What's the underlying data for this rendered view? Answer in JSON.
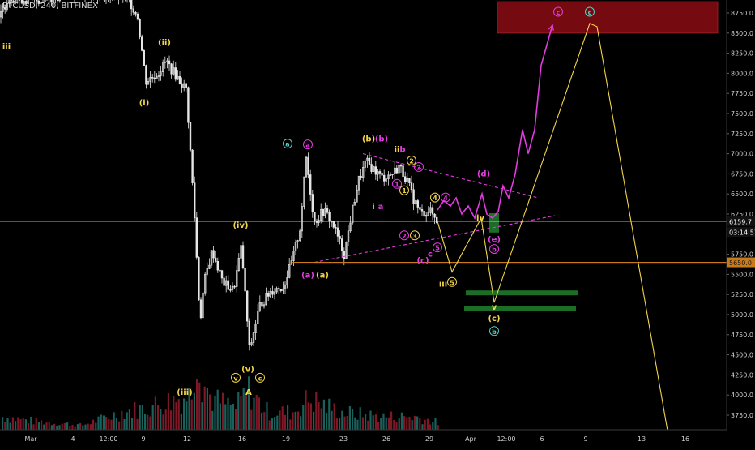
{
  "symbol": "BTCUSD, 240, BITFINEX",
  "colors": {
    "background": "#000000",
    "candle": "#e6e6e6",
    "axis_text": "#cfcfcf",
    "yellow": "#f2d54a",
    "magenta": "#e23ce0",
    "teal": "#4fd1c5",
    "green_zone": "#1f7a2a",
    "red_zone": "#8a0d14",
    "support_line": "#c77a1a",
    "vol_up": "#1d6b66",
    "vol_down": "#8c1a2a"
  },
  "chart_data": {
    "type": "candlestick",
    "ylim": [
      3500,
      9000
    ],
    "y_ticks": [
      "8750.0",
      "8500.0",
      "8250.0",
      "8000.0",
      "7750.0",
      "7500.0",
      "7250.0",
      "7000.0",
      "6750.0",
      "6500.0",
      "6250.0",
      "5750.0",
      "5500.0",
      "5250.0",
      "5000.0",
      "4750.0",
      "4500.0",
      "4250.0",
      "4000.0",
      "3750.0"
    ],
    "y_tick_values": [
      8750,
      8500,
      8250,
      8000,
      7750,
      7500,
      7250,
      7000,
      6750,
      6500,
      6250,
      5750,
      5500,
      5250,
      5000,
      4750,
      4500,
      4250,
      4000,
      3750
    ],
    "x_ticks": [
      "Mar",
      "4",
      "12:00",
      "9",
      "12",
      "16",
      "19",
      "23",
      "26",
      "29",
      "Apr",
      "12:00",
      "6",
      "9",
      "13",
      "16"
    ],
    "price_labels": {
      "current": "6159.7",
      "countdown": "03:14:57",
      "support": "5650.0"
    },
    "price_path": [
      [
        0,
        8700
      ],
      [
        10,
        8950
      ],
      [
        40,
        8900
      ],
      [
        70,
        8950
      ],
      [
        100,
        9000
      ],
      [
        150,
        8950
      ],
      [
        160,
        8900
      ],
      [
        170,
        8700
      ],
      [
        180,
        7900
      ],
      [
        195,
        8000
      ],
      [
        205,
        8150
      ],
      [
        215,
        8000
      ],
      [
        230,
        7800
      ],
      [
        240,
        6250
      ],
      [
        247,
        4900
      ],
      [
        252,
        5400
      ],
      [
        262,
        5800
      ],
      [
        275,
        5400
      ],
      [
        288,
        5300
      ],
      [
        298,
        5850
      ],
      [
        308,
        4550
      ],
      [
        320,
        5100
      ],
      [
        335,
        5300
      ],
      [
        350,
        5350
      ],
      [
        360,
        5650
      ],
      [
        370,
        6050
      ],
      [
        378,
        6950
      ],
      [
        388,
        6150
      ],
      [
        400,
        6300
      ],
      [
        412,
        6100
      ],
      [
        425,
        5750
      ],
      [
        433,
        6200
      ],
      [
        442,
        6650
      ],
      [
        452,
        6900
      ],
      [
        462,
        6800
      ],
      [
        472,
        6700
      ],
      [
        484,
        6750
      ],
      [
        493,
        6850
      ],
      [
        503,
        6650
      ],
      [
        510,
        6450
      ],
      [
        520,
        6250
      ],
      [
        530,
        6300
      ],
      [
        540,
        6160
      ]
    ],
    "volume_path": [
      [
        0,
        0.15
      ],
      [
        40,
        0.1
      ],
      [
        100,
        0.05
      ],
      [
        150,
        0.2
      ],
      [
        180,
        0.25
      ],
      [
        235,
        0.4
      ],
      [
        242,
        1.0
      ],
      [
        248,
        0.6
      ],
      [
        260,
        0.35
      ],
      [
        290,
        0.25
      ],
      [
        305,
        0.45
      ],
      [
        330,
        0.2
      ],
      [
        360,
        0.2
      ],
      [
        380,
        0.35
      ],
      [
        420,
        0.2
      ],
      [
        470,
        0.15
      ],
      [
        510,
        0.15
      ],
      [
        540,
        0.08
      ]
    ],
    "wave_labels": [
      {
        "text": "iii",
        "price": 8300,
        "x": 8,
        "color": "yellow",
        "style": "plain"
      },
      {
        "text": "(ii)",
        "price": 8350,
        "x": 203,
        "color": "yellow",
        "style": "plain"
      },
      {
        "text": "(i)",
        "price": 7600,
        "x": 178,
        "color": "yellow",
        "style": "plain"
      },
      {
        "text": "(iv)",
        "price": 6080,
        "x": 297,
        "color": "yellow",
        "style": "plain"
      },
      {
        "text": "(v)",
        "price": 4290,
        "x": 306,
        "color": "yellow",
        "style": "plain"
      },
      {
        "text": "v",
        "price": 4180,
        "x": 291,
        "color": "yellow",
        "style": "circle"
      },
      {
        "text": "c",
        "price": 4180,
        "x": 321,
        "color": "yellow",
        "style": "circle"
      },
      {
        "text": "A",
        "price": 4000,
        "x": 307,
        "color": "yellow",
        "style": "plain"
      },
      {
        "text": "(iii)",
        "price": 4000,
        "x": 228,
        "color": "yellow",
        "style": "plain"
      },
      {
        "text": "a",
        "price": 7090,
        "x": 355,
        "color": "teal",
        "style": "circle"
      },
      {
        "text": "a",
        "price": 7080,
        "x": 380,
        "color": "magenta",
        "style": "circle"
      },
      {
        "text": "(a)",
        "price": 5460,
        "x": 380,
        "color": "magenta",
        "style": "plain"
      },
      {
        "text": "(a)",
        "price": 5460,
        "x": 398,
        "color": "yellow",
        "style": "plain"
      },
      {
        "text": "(b)",
        "price": 7150,
        "x": 455,
        "color": "yellow",
        "style": "plain"
      },
      {
        "text": "(b)",
        "price": 7150,
        "x": 471,
        "color": "magenta",
        "style": "plain"
      },
      {
        "text": "ii",
        "price": 7020,
        "x": 490,
        "color": "yellow",
        "style": "plain"
      },
      {
        "text": "b",
        "price": 7020,
        "x": 497,
        "color": "magenta",
        "style": "plain"
      },
      {
        "text": "i",
        "price": 6310,
        "x": 461,
        "color": "yellow",
        "style": "plain"
      },
      {
        "text": "a",
        "price": 6310,
        "x": 470,
        "color": "magenta",
        "style": "plain"
      },
      {
        "text": "2",
        "price": 6880,
        "x": 508,
        "color": "yellow",
        "style": "circle"
      },
      {
        "text": "2",
        "price": 6800,
        "x": 517,
        "color": "magenta",
        "style": "circle"
      },
      {
        "text": "1",
        "price": 6590,
        "x": 490,
        "color": "magenta",
        "style": "circle"
      },
      {
        "text": "1",
        "price": 6510,
        "x": 499,
        "color": "yellow",
        "style": "circle"
      },
      {
        "text": "4",
        "price": 6420,
        "x": 537,
        "color": "yellow",
        "style": "circle"
      },
      {
        "text": "4",
        "price": 6420,
        "x": 550,
        "color": "magenta",
        "style": "circle"
      },
      {
        "text": "(d)",
        "price": 6720,
        "x": 597,
        "color": "magenta",
        "style": "plain"
      },
      {
        "text": "iv",
        "price": 6170,
        "x": 593,
        "color": "yellow",
        "style": "plain"
      },
      {
        "text": "2",
        "price": 5950,
        "x": 499,
        "color": "magenta",
        "style": "circle"
      },
      {
        "text": "3",
        "price": 5950,
        "x": 512,
        "color": "yellow",
        "style": "circle"
      },
      {
        "text": "5",
        "price": 5800,
        "x": 540,
        "color": "magenta",
        "style": "circle"
      },
      {
        "text": "c",
        "price": 5720,
        "x": 531,
        "color": "magenta",
        "style": "plain"
      },
      {
        "text": "(c)",
        "price": 5640,
        "x": 522,
        "color": "magenta",
        "style": "plain"
      },
      {
        "text": "iii",
        "price": 5350,
        "x": 547,
        "color": "yellow",
        "style": "plain"
      },
      {
        "text": "5",
        "price": 5370,
        "x": 558,
        "color": "yellow",
        "style": "circle"
      },
      {
        "text": "(e)",
        "price": 5900,
        "x": 610,
        "color": "magenta",
        "style": "plain"
      },
      {
        "text": "b",
        "price": 5780,
        "x": 610,
        "color": "magenta",
        "style": "circle"
      },
      {
        "text": "v",
        "price": 5060,
        "x": 610,
        "color": "yellow",
        "style": "plain"
      },
      {
        "text": "(c)",
        "price": 4920,
        "x": 610,
        "color": "yellow",
        "style": "plain"
      },
      {
        "text": "b",
        "price": 4760,
        "x": 610,
        "color": "teal",
        "style": "circle"
      },
      {
        "text": "c",
        "price": 8730,
        "x": 689,
        "color": "magenta",
        "style": "circle"
      },
      {
        "text": "c",
        "price": 8730,
        "x": 728,
        "color": "teal",
        "style": "circle"
      }
    ],
    "lines": [
      {
        "color": "magenta",
        "dashed": true,
        "from": [
          448,
          7000
        ],
        "to": [
          665,
          6450
        ]
      },
      {
        "color": "magenta",
        "dashed": true,
        "from": [
          388,
          5650
        ],
        "to": [
          685,
          6230
        ]
      },
      {
        "color": "white",
        "dashed": false,
        "from": [
          0,
          6160
        ],
        "to": [
          897,
          6160
        ]
      },
      {
        "color": "orange",
        "dashed": false,
        "from": [
          388,
          5650
        ],
        "to": [
          897,
          5650
        ]
      },
      {
        "color": "orange",
        "dashed": false,
        "from": [
          360,
          5650
        ],
        "to": [
          900,
          5650
        ]
      }
    ],
    "projections": [
      {
        "color": "yellow",
        "points": [
          [
            540,
            6160
          ],
          [
            558,
            5530
          ],
          [
            594,
            6200
          ],
          [
            610,
            5150
          ],
          [
            728,
            8620
          ],
          [
            737,
            8580
          ],
          [
            825,
            3500
          ]
        ]
      },
      {
        "color": "magenta",
        "points": [
          [
            540,
            6300
          ],
          [
            548,
            6420
          ],
          [
            556,
            6350
          ],
          [
            563,
            6450
          ],
          [
            570,
            6250
          ],
          [
            578,
            6350
          ],
          [
            586,
            6200
          ],
          [
            595,
            6500
          ],
          [
            601,
            6250
          ],
          [
            608,
            6200
          ],
          [
            615,
            6280
          ],
          [
            621,
            6600
          ],
          [
            628,
            6450
          ],
          [
            636,
            6750
          ],
          [
            645,
            7300
          ],
          [
            652,
            7000
          ],
          [
            660,
            7300
          ],
          [
            668,
            8100
          ],
          [
            682,
            8600
          ]
        ]
      }
    ],
    "zones": [
      {
        "color": "red_zone",
        "x0": 614,
        "x1": 886,
        "p0": 8500,
        "p1": 8890
      },
      {
        "color": "green_zone",
        "x0": 575,
        "x1": 714,
        "p0": 5240,
        "p1": 5300
      },
      {
        "color": "green_zone",
        "x0": 573,
        "x1": 711,
        "p0": 5050,
        "p1": 5110
      },
      {
        "color": "green_zone",
        "x0": 604,
        "x1": 616,
        "p0": 6020,
        "p1": 6260
      }
    ]
  }
}
